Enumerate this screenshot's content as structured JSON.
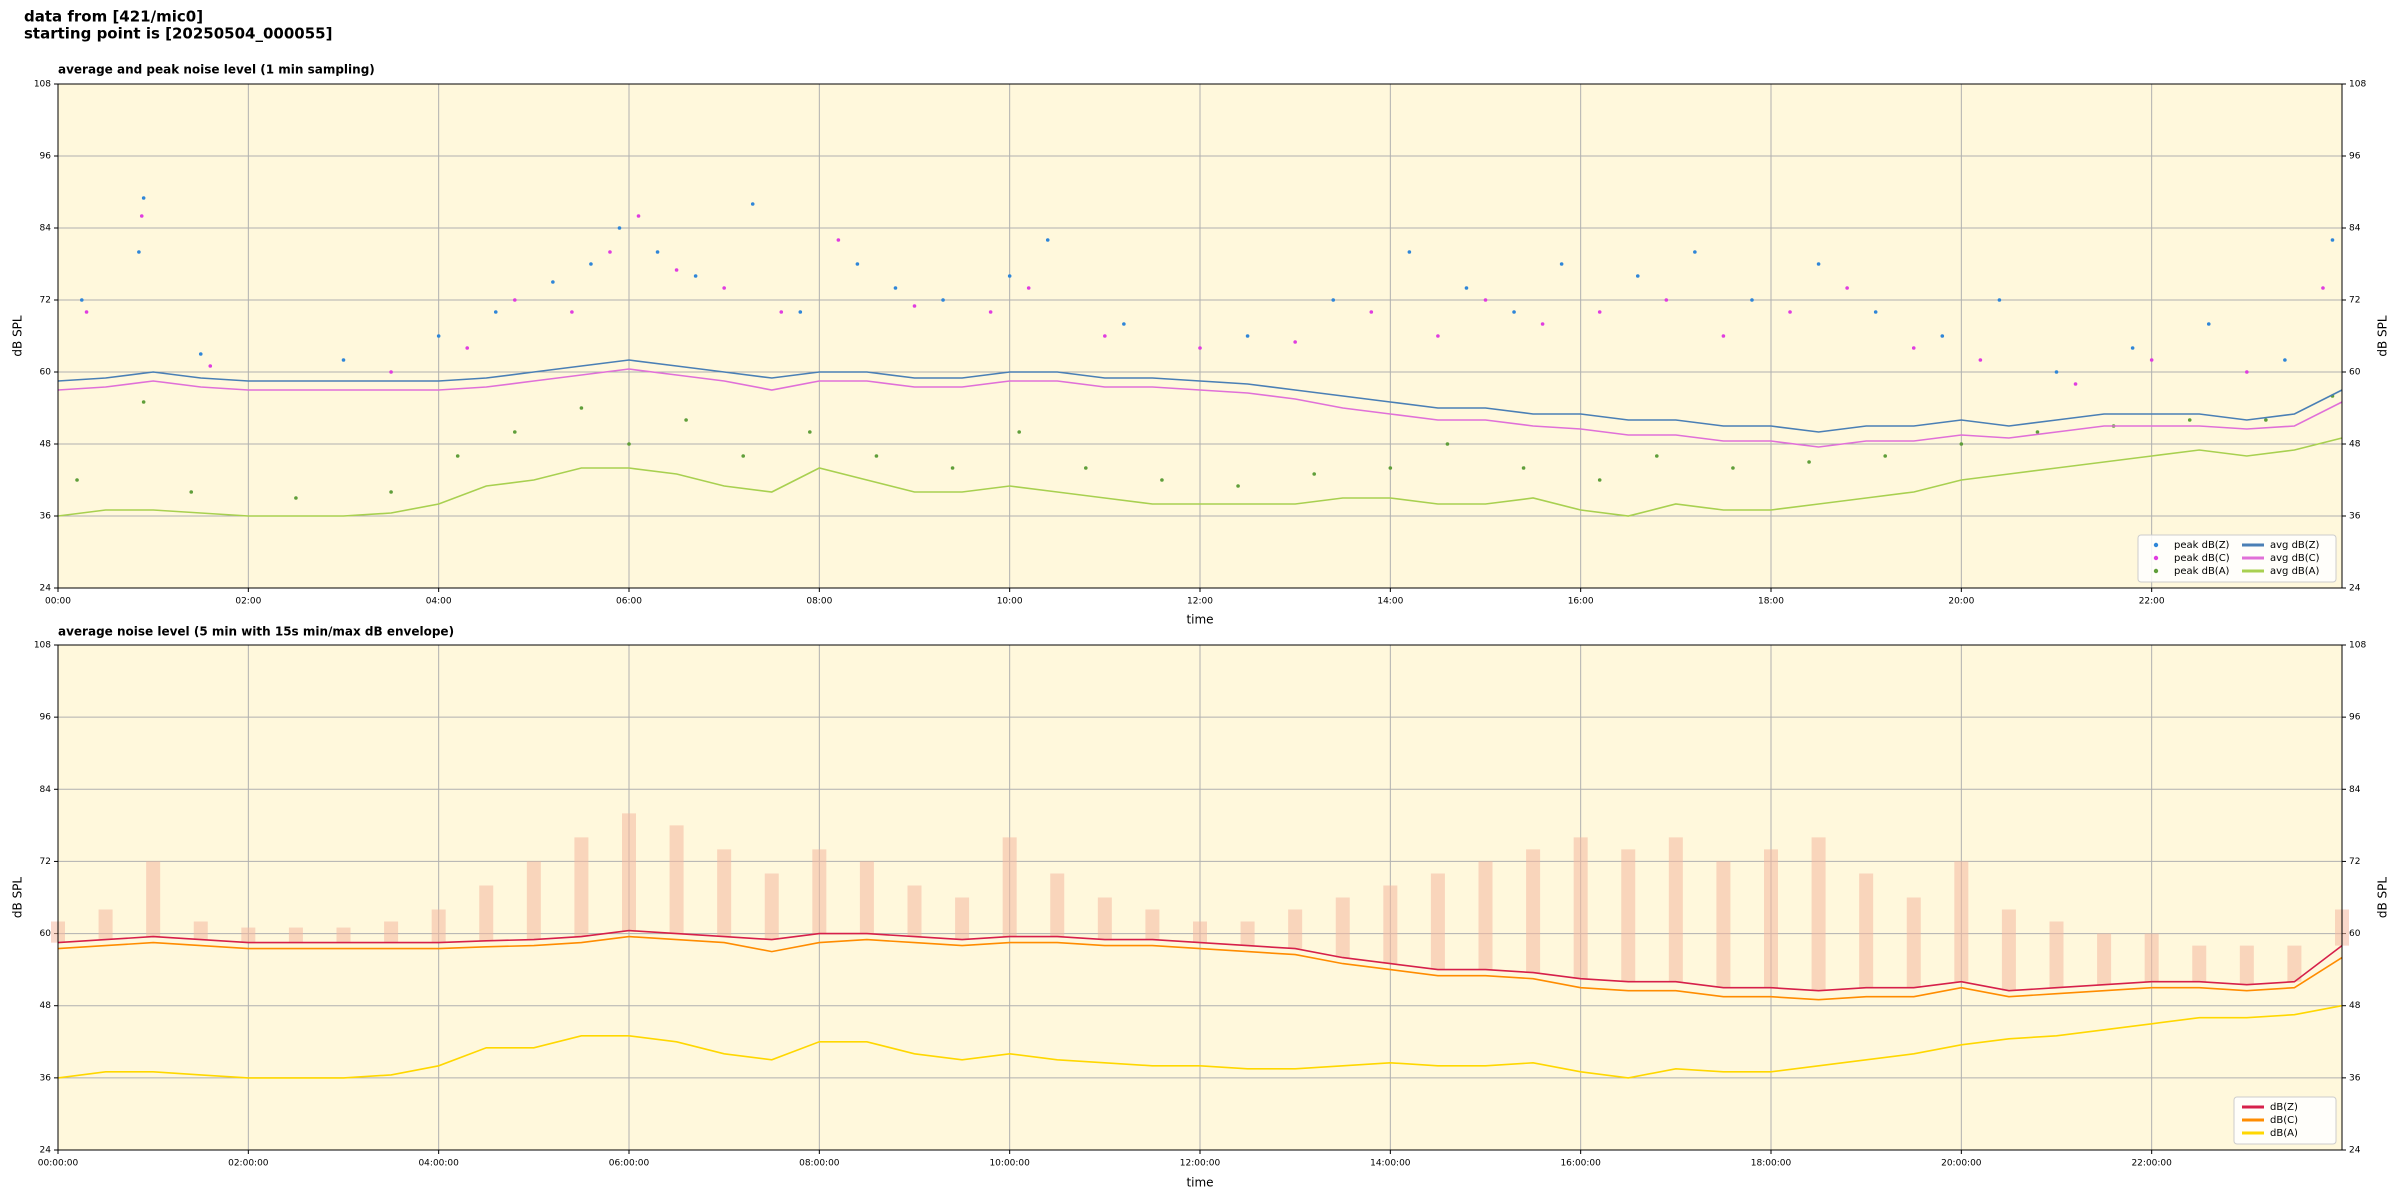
{
  "header": {
    "lines": [
      "data from [421/mic0]",
      "starting point is [20250504_000055]"
    ]
  },
  "chart_data": [
    {
      "type": "line",
      "title": "average and peak noise level (1 min sampling)",
      "xlabel": "time",
      "ylabel": "dB SPL",
      "grid": true,
      "legend": "lower right",
      "legend_columns": 2,
      "xlim": [
        0,
        24
      ],
      "ylim": [
        24,
        108
      ],
      "yticks": [
        24,
        36,
        48,
        60,
        72,
        84,
        96,
        108
      ],
      "xticks": [
        {
          "value": 0,
          "label": "00:00"
        },
        {
          "value": 2,
          "label": "02:00"
        },
        {
          "value": 4,
          "label": "04:00"
        },
        {
          "value": 6,
          "label": "06:00"
        },
        {
          "value": 8,
          "label": "08:00"
        },
        {
          "value": 10,
          "label": "10:00"
        },
        {
          "value": 12,
          "label": "12:00"
        },
        {
          "value": 14,
          "label": "14:00"
        },
        {
          "value": 16,
          "label": "16:00"
        },
        {
          "value": 18,
          "label": "18:00"
        },
        {
          "value": 20,
          "label": "20:00"
        },
        {
          "value": 22,
          "label": "22:00"
        }
      ],
      "x": [
        0,
        0.5,
        1,
        1.5,
        2,
        2.5,
        3,
        3.5,
        4,
        4.5,
        5,
        5.5,
        6,
        6.5,
        7,
        7.5,
        8,
        8.5,
        9,
        9.5,
        10,
        10.5,
        11,
        11.5,
        12,
        12.5,
        13,
        13.5,
        14,
        14.5,
        15,
        15.5,
        16,
        16.5,
        17,
        17.5,
        18,
        18.5,
        19,
        19.5,
        20,
        20.5,
        21,
        21.5,
        22,
        22.5,
        23,
        23.5,
        24
      ],
      "series": [
        {
          "name": "peak dB(Z)",
          "type": "scatter",
          "color": "#2f86d8",
          "x": [
            0.25,
            0.85,
            0.9,
            1.5,
            3,
            4,
            4.6,
            5.2,
            5.6,
            5.9,
            6.3,
            6.7,
            7.3,
            7.8,
            8.4,
            8.8,
            9.3,
            10,
            10.4,
            11.2,
            12.5,
            13.4,
            14.2,
            14.8,
            15.3,
            15.8,
            16.6,
            17.2,
            17.8,
            18.5,
            19.1,
            19.8,
            20.4,
            21,
            21.8,
            22.6,
            23.4,
            23.9
          ],
          "values": [
            72,
            80,
            89,
            63,
            62,
            66,
            70,
            75,
            78,
            84,
            80,
            76,
            88,
            70,
            78,
            74,
            72,
            76,
            82,
            68,
            66,
            72,
            80,
            74,
            70,
            78,
            76,
            80,
            72,
            78,
            70,
            66,
            72,
            60,
            64,
            68,
            62,
            82
          ]
        },
        {
          "name": "peak dB(C)",
          "type": "scatter",
          "color": "#e03ce0",
          "x": [
            0.3,
            0.88,
            1.6,
            3.5,
            4.3,
            4.8,
            5.4,
            5.8,
            6.1,
            6.5,
            7,
            7.6,
            8.2,
            9,
            9.8,
            10.2,
            11,
            12,
            13,
            13.8,
            14.5,
            15,
            15.6,
            16.2,
            16.9,
            17.5,
            18.2,
            18.8,
            19.5,
            20.2,
            21.2,
            22,
            23,
            23.8
          ],
          "values": [
            70,
            86,
            61,
            60,
            64,
            72,
            70,
            80,
            86,
            77,
            74,
            70,
            82,
            71,
            70,
            74,
            66,
            64,
            65,
            70,
            66,
            72,
            68,
            70,
            72,
            66,
            70,
            74,
            64,
            62,
            58,
            62,
            60,
            74
          ]
        },
        {
          "name": "peak dB(A)",
          "type": "scatter",
          "color": "#5f9e3a",
          "x": [
            0.2,
            0.9,
            1.4,
            2.5,
            3.5,
            4.2,
            4.8,
            5.5,
            6,
            6.6,
            7.2,
            7.9,
            8.6,
            9.4,
            10.1,
            10.8,
            11.6,
            12.4,
            13.2,
            14,
            14.6,
            15.4,
            16.2,
            16.8,
            17.6,
            18.4,
            19.2,
            20,
            20.8,
            21.6,
            22.4,
            23.2,
            23.9
          ],
          "values": [
            42,
            55,
            40,
            39,
            40,
            46,
            50,
            54,
            48,
            52,
            46,
            50,
            46,
            44,
            50,
            44,
            42,
            41,
            43,
            44,
            48,
            44,
            42,
            46,
            44,
            45,
            46,
            48,
            50,
            51,
            52,
            52,
            56
          ]
        },
        {
          "name": "avg dB(Z)",
          "type": "line",
          "color": "#4a7fb5",
          "values": [
            58.5,
            59,
            60,
            59,
            58.5,
            58.5,
            58.5,
            58.5,
            58.5,
            59,
            60,
            61,
            62,
            61,
            60,
            59,
            60,
            60,
            59,
            59,
            60,
            60,
            59,
            59,
            58.5,
            58,
            57,
            56,
            55,
            54,
            54,
            53,
            53,
            52,
            52,
            51,
            51,
            50,
            51,
            51,
            52,
            51,
            52,
            53,
            53,
            53,
            52,
            53,
            57
          ]
        },
        {
          "name": "avg dB(C)",
          "type": "line",
          "color": "#e070d8",
          "values": [
            57,
            57.5,
            58.5,
            57.5,
            57,
            57,
            57,
            57,
            57,
            57.5,
            58.5,
            59.5,
            60.5,
            59.5,
            58.5,
            57,
            58.5,
            58.5,
            57.5,
            57.5,
            58.5,
            58.5,
            57.5,
            57.5,
            57,
            56.5,
            55.5,
            54,
            53,
            52,
            52,
            51,
            50.5,
            49.5,
            49.5,
            48.5,
            48.5,
            47.5,
            48.5,
            48.5,
            49.5,
            49,
            50,
            51,
            51,
            51,
            50.5,
            51,
            55
          ]
        },
        {
          "name": "avg dB(A)",
          "type": "line",
          "color": "#a8d050",
          "values": [
            36,
            37,
            37,
            36.5,
            36,
            36,
            36,
            36.5,
            38,
            41,
            42,
            44,
            44,
            43,
            41,
            40,
            44,
            42,
            40,
            40,
            41,
            40,
            39,
            38,
            38,
            38,
            38,
            39,
            39,
            38,
            38,
            39,
            37,
            36,
            38,
            37,
            37,
            38,
            39,
            40,
            42,
            43,
            44,
            45,
            46,
            47,
            46,
            47,
            49
          ]
        }
      ]
    },
    {
      "type": "line",
      "title": "average noise level (5 min with 15s min/max dB envelope)",
      "xlabel": "time",
      "ylabel": "dB SPL",
      "grid": true,
      "legend": "lower right",
      "legend_columns": 1,
      "xlim": [
        0,
        24
      ],
      "ylim": [
        24,
        108
      ],
      "yticks": [
        24,
        36,
        48,
        60,
        72,
        84,
        96,
        108
      ],
      "xticks": [
        {
          "value": 0,
          "label": "00:00:00"
        },
        {
          "value": 2,
          "label": "02:00:00"
        },
        {
          "value": 4,
          "label": "04:00:00"
        },
        {
          "value": 6,
          "label": "06:00:00"
        },
        {
          "value": 8,
          "label": "08:00:00"
        },
        {
          "value": 10,
          "label": "10:00:00"
        },
        {
          "value": 12,
          "label": "12:00:00"
        },
        {
          "value": 14,
          "label": "14:00:00"
        },
        {
          "value": 16,
          "label": "16:00:00"
        },
        {
          "value": 18,
          "label": "18:00:00"
        },
        {
          "value": 20,
          "label": "20:00:00"
        },
        {
          "value": 22,
          "label": "22:00:00"
        }
      ],
      "x": [
        0,
        0.5,
        1,
        1.5,
        2,
        2.5,
        3,
        3.5,
        4,
        4.5,
        5,
        5.5,
        6,
        6.5,
        7,
        7.5,
        8,
        8.5,
        9,
        9.5,
        10,
        10.5,
        11,
        11.5,
        12,
        12.5,
        13,
        13.5,
        14,
        14.5,
        15,
        15.5,
        16,
        16.5,
        17,
        17.5,
        18,
        18.5,
        19,
        19.5,
        20,
        20.5,
        21,
        21.5,
        22,
        22.5,
        23,
        23.5,
        24
      ],
      "envelope": {
        "color": "#f4b8a0",
        "values": [
          62,
          64,
          72,
          62,
          61,
          61,
          61,
          62,
          64,
          68,
          72,
          76,
          80,
          78,
          74,
          70,
          74,
          72,
          68,
          66,
          76,
          70,
          66,
          64,
          62,
          62,
          64,
          66,
          68,
          70,
          72,
          74,
          76,
          74,
          76,
          72,
          74,
          76,
          70,
          66,
          72,
          64,
          62,
          60,
          60,
          58,
          58,
          58,
          64
        ]
      },
      "series": [
        {
          "name": "dB(Z)",
          "type": "line",
          "color": "#d6204a",
          "values": [
            58.5,
            59,
            59.5,
            59,
            58.5,
            58.5,
            58.5,
            58.5,
            58.5,
            58.8,
            59,
            59.5,
            60.5,
            60,
            59.5,
            59,
            60,
            60,
            59.5,
            59,
            59.5,
            59.5,
            59,
            59,
            58.5,
            58,
            57.5,
            56,
            55,
            54,
            54,
            53.5,
            52.5,
            52,
            52,
            51,
            51,
            50.5,
            51,
            51,
            52,
            50.5,
            51,
            51.5,
            52,
            52,
            51.5,
            52,
            58
          ]
        },
        {
          "name": "dB(C)",
          "type": "line",
          "color": "#ff8c00",
          "values": [
            57.5,
            58,
            58.5,
            58,
            57.5,
            57.5,
            57.5,
            57.5,
            57.5,
            57.8,
            58,
            58.5,
            59.5,
            59,
            58.5,
            57,
            58.5,
            59,
            58.5,
            58,
            58.5,
            58.5,
            58,
            58,
            57.5,
            57,
            56.5,
            55,
            54,
            53,
            53,
            52.5,
            51,
            50.5,
            50.5,
            49.5,
            49.5,
            49,
            49.5,
            49.5,
            51,
            49.5,
            50,
            50.5,
            51,
            51,
            50.5,
            51,
            56
          ]
        },
        {
          "name": "dB(A)",
          "type": "line",
          "color": "#ffd700",
          "values": [
            36,
            37,
            37,
            36.5,
            36,
            36,
            36,
            36.5,
            38,
            41,
            41,
            43,
            43,
            42,
            40,
            39,
            42,
            42,
            40,
            39,
            40,
            39,
            38.5,
            38,
            38,
            37.5,
            37.5,
            38,
            38.5,
            38,
            38,
            38.5,
            37,
            36,
            37.5,
            37,
            37,
            38,
            39,
            40,
            41.5,
            42.5,
            43,
            44,
            45,
            46,
            46,
            46.5,
            48
          ]
        }
      ]
    }
  ]
}
